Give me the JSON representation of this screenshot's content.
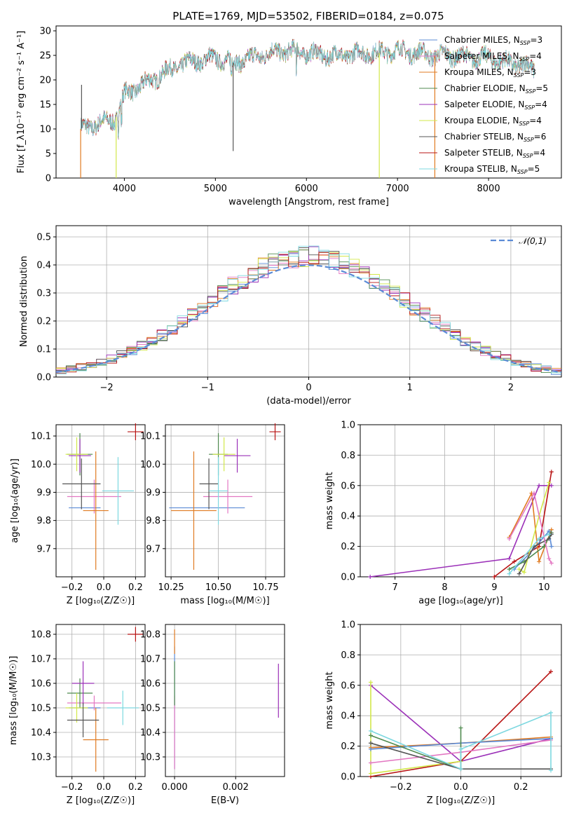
{
  "suptitle": "PLATE=1769, MJD=53502, FIBERID=0184, z=0.075",
  "colors": [
    "#5b8bd6",
    "#e377c2",
    "#e07b22",
    "#4f8a4f",
    "#9b30b8",
    "#d2e84a",
    "#555555",
    "#b81414",
    "#7dd8e0"
  ],
  "chart_data": [
    {
      "id": "spectrum",
      "type": "line",
      "xlabel": "wavelength [Angstrom, rest frame]",
      "ylabel": "Flux [f_λ10⁻¹⁷ erg cm⁻² s⁻¹ A⁻¹]",
      "xlim": [
        3250,
        8800
      ],
      "ylim": [
        0,
        31
      ],
      "xticks": [
        4000,
        5000,
        6000,
        7000,
        8000
      ],
      "yticks": [
        0,
        5,
        10,
        15,
        20,
        25,
        30
      ],
      "continuum": {
        "x": [
          3520,
          3700,
          3900,
          4000,
          4200,
          4400,
          4600,
          4800,
          5000,
          5200,
          5400,
          5600,
          5800,
          6000,
          6200,
          6400,
          6600,
          6800,
          7000,
          7200,
          7400,
          7600,
          7800,
          8000,
          8200,
          8400,
          8500
        ],
        "y": [
          10,
          11,
          12,
          17,
          19,
          21,
          23,
          24,
          24.5,
          23.5,
          24.5,
          25.5,
          26,
          25.5,
          25,
          25,
          25.5,
          25.5,
          26,
          25.5,
          25,
          25,
          24.5,
          24.5,
          23.5,
          23,
          22
        ]
      },
      "series": [
        {
          "name": "Chabrier MILES, N_SSP=3"
        },
        {
          "name": "Salpeter MILES, N_SSP=4"
        },
        {
          "name": "Kroupa MILES, N_SSP=3"
        },
        {
          "name": "Chabrier ELODIE, N_SSP=5"
        },
        {
          "name": "Salpeter ELODIE, N_SSP=4"
        },
        {
          "name": "Kroupa ELODIE, N_SSP=4"
        },
        {
          "name": "Chabrier STELIB, N_SSP=6"
        },
        {
          "name": "Salpeter STELIB, N_SSP=4"
        },
        {
          "name": "Kroupa STELIB, N_SSP=5"
        }
      ],
      "legend": "upper right"
    },
    {
      "id": "residuals",
      "type": "line",
      "xlabel": "(data-model)/error",
      "ylabel": "Normed distribution",
      "xlim": [
        -2.5,
        2.5
      ],
      "ylim": [
        0,
        0.54
      ],
      "xticks": [
        -2,
        -1,
        0,
        1,
        2
      ],
      "yticks": [
        0,
        0.1,
        0.2,
        0.3,
        0.4,
        0.5
      ],
      "gaussian": {
        "name": "𝒩(0,1)",
        "mean": 0,
        "std": 1
      },
      "legend": "upper right",
      "grid": true
    },
    {
      "id": "age_vs_Z",
      "type": "scatter",
      "xlabel": "Z [log₁₀(Z/Z☉)]",
      "ylabel": "age  [log₁₀(age/yr)]",
      "xlim": [
        -0.3,
        0.26
      ],
      "ylim": [
        9.6,
        10.14
      ],
      "xticks": [
        -0.2,
        0,
        0.2
      ],
      "yticks": [
        9.7,
        9.8,
        9.9,
        10.0,
        10.1
      ],
      "points": [
        {
          "x": -0.12,
          "y": 9.845,
          "xerr": 0.1,
          "yerr": 0
        },
        {
          "x": -0.06,
          "y": 9.885,
          "xerr": 0.17,
          "yerr": 0.06
        },
        {
          "x": -0.05,
          "y": 9.835,
          "xerr": 0.08,
          "yerr": 0.21
        },
        {
          "x": -0.15,
          "y": 10.035,
          "xerr": 0.08,
          "yerr": 0.075
        },
        {
          "x": -0.15,
          "y": 10.03,
          "xerr": 0.07,
          "yerr": 0.06
        },
        {
          "x": -0.17,
          "y": 10.035,
          "xerr": 0.07,
          "yerr": 0.06
        },
        {
          "x": -0.14,
          "y": 9.93,
          "xerr": 0.12,
          "yerr": 0.09
        },
        {
          "x": 0.2,
          "y": 10.115,
          "xerr": 0.05,
          "yerr": 0.03
        },
        {
          "x": 0.09,
          "y": 9.905,
          "xerr": 0.1,
          "yerr": 0.12
        }
      ]
    },
    {
      "id": "age_vs_mass",
      "type": "scatter",
      "xlabel": "mass [log₁₀(M/M☉)]",
      "ylabel": "",
      "xlim": [
        10.22,
        10.85
      ],
      "ylim": [
        9.6,
        10.14
      ],
      "xticks": [
        10.25,
        10.5,
        10.75
      ],
      "yticks": [
        9.7,
        9.8,
        9.9,
        10.0,
        10.1
      ],
      "points": [
        {
          "x": 10.44,
          "y": 9.845,
          "xerr": 0.2,
          "yerr": 0
        },
        {
          "x": 10.55,
          "y": 9.885,
          "xerr": 0.13,
          "yerr": 0.06
        },
        {
          "x": 10.37,
          "y": 9.835,
          "xerr": 0.12,
          "yerr": 0.21
        },
        {
          "x": 10.5,
          "y": 10.035,
          "xerr": 0.05,
          "yerr": 0.075
        },
        {
          "x": 10.6,
          "y": 10.03,
          "xerr": 0.07,
          "yerr": 0.06
        },
        {
          "x": 10.53,
          "y": 10.035,
          "xerr": 0.06,
          "yerr": 0.06
        },
        {
          "x": 10.45,
          "y": 9.93,
          "xerr": 0.05,
          "yerr": 0.09
        },
        {
          "x": 10.8,
          "y": 10.115,
          "xerr": 0.03,
          "yerr": 0.03
        },
        {
          "x": 10.5,
          "y": 9.905,
          "xerr": 0.05,
          "yerr": 0.12
        }
      ]
    },
    {
      "id": "weight_vs_age",
      "type": "line",
      "xlabel": "age  [log₁₀(age/yr)]",
      "ylabel": "mass weight",
      "xlim": [
        6.3,
        10.35
      ],
      "ylim": [
        0,
        1.0
      ],
      "xticks": [
        7,
        8,
        9,
        10
      ],
      "yticks": [
        0,
        0.2,
        0.4,
        0.6,
        0.8,
        1.0
      ]
    },
    {
      "id": "mass_vs_Z",
      "type": "scatter",
      "xlabel": "Z [log₁₀(Z/Z☉)]",
      "ylabel": "mass [log₁₀(M/M☉)]",
      "xlim": [
        -0.3,
        0.26
      ],
      "ylim": [
        10.22,
        10.84
      ],
      "xticks": [
        -0.2,
        0,
        0.2
      ],
      "yticks": [
        10.3,
        10.4,
        10.5,
        10.6,
        10.7,
        10.8
      ],
      "points": [
        {
          "x": -0.12,
          "y": 10.5,
          "xerr": 0.1,
          "yerr": 0
        },
        {
          "x": -0.06,
          "y": 10.52,
          "xerr": 0.17,
          "yerr": 0.03
        },
        {
          "x": -0.05,
          "y": 10.37,
          "xerr": 0.08,
          "yerr": 0.13
        },
        {
          "x": -0.15,
          "y": 10.56,
          "xerr": 0.08,
          "yerr": 0.06
        },
        {
          "x": -0.13,
          "y": 10.6,
          "xerr": 0.07,
          "yerr": 0.09
        },
        {
          "x": -0.17,
          "y": 10.5,
          "xerr": 0.07,
          "yerr": 0.06
        },
        {
          "x": -0.13,
          "y": 10.45,
          "xerr": 0.1,
          "yerr": 0.07
        },
        {
          "x": 0.2,
          "y": 10.8,
          "xerr": 0.05,
          "yerr": 0.03
        },
        {
          "x": 0.12,
          "y": 10.5,
          "xerr": 0.1,
          "yerr": 0.07
        }
      ]
    },
    {
      "id": "mass_vs_ebv",
      "type": "scatter",
      "xlabel": "E(B-V)",
      "ylabel": "",
      "xlim": [
        -0.0003,
        0.0036
      ],
      "ylim": [
        10.22,
        10.84
      ],
      "xticks": [
        0,
        0.002
      ],
      "yticks": [
        10.3,
        10.4,
        10.5,
        10.6,
        10.7,
        10.8
      ],
      "points": [
        {
          "x": 0,
          "y": 10.5,
          "xerr": 0,
          "yerr": 0.25
        },
        {
          "x": 0,
          "y": 10.4,
          "xerr": 0,
          "yerr": 0.15
        },
        {
          "x": 0,
          "y": 10.77,
          "xerr": 0,
          "yerr": 0.05
        },
        {
          "x": 0,
          "y": 10.6,
          "xerr": 0,
          "yerr": 0.09
        },
        {
          "x": 0.0034,
          "y": 10.57,
          "xerr": 0,
          "yerr": 0.11
        }
      ]
    },
    {
      "id": "weight_vs_Z",
      "type": "line",
      "xlabel": "Z [log₁₀(Z/Z☉)]",
      "ylabel": "mass weight",
      "xlim": [
        -0.335,
        0.335
      ],
      "ylim": [
        0,
        1.0
      ],
      "xticks": [
        -0.2,
        0,
        0.2
      ],
      "yticks": [
        0,
        0.2,
        0.4,
        0.6,
        0.8,
        1.0
      ]
    }
  ]
}
